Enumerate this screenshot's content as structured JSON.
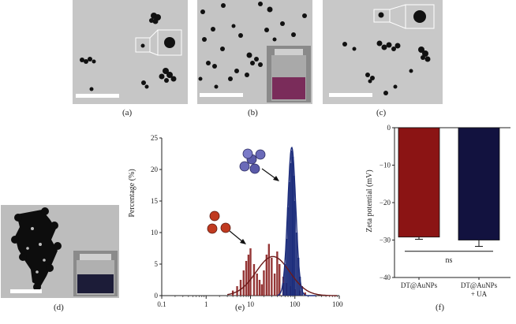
{
  "panels": {
    "a": {
      "label": "(a)"
    },
    "b": {
      "label": "(b)"
    },
    "c": {
      "label": "(c)"
    },
    "d": {
      "label": "(d)"
    },
    "e": {
      "label": "(e)"
    },
    "f": {
      "label": "(f)"
    }
  },
  "colors": {
    "tem_bg": "#c9c9c9",
    "particle": "#111111",
    "dls_line": "#6b1a1a",
    "dls_bar_red": "#8a2020",
    "blue_line": "#1a2a7a",
    "bar_red": "#8b1414",
    "bar_navy": "#12123f"
  },
  "chart_data": [
    {
      "panel": "e",
      "type": "bar",
      "xscale": "log",
      "xlim": [
        0.1,
        1000
      ],
      "xticks": [
        "0.1",
        "1",
        "10",
        "100",
        "1000"
      ],
      "ylim": [
        0,
        25
      ],
      "yticks": [
        "0",
        "5",
        "10",
        "15",
        "20",
        "25"
      ],
      "ylabel": "Percentage (%)",
      "xlabel": "",
      "series": [
        {
          "color": "#8a2020",
          "fit": "gaussian",
          "fit_peak_x": 32,
          "fit_peak_y": 6.2,
          "bars": [
            [
              4,
              0.8
            ],
            [
              5,
              1.5
            ],
            [
              6,
              2.5
            ],
            [
              7,
              4.0
            ],
            [
              8,
              5.5
            ],
            [
              9,
              6.5
            ],
            [
              10,
              7.5
            ],
            [
              12,
              5.0
            ],
            [
              14,
              3.5
            ],
            [
              16,
              2.5
            ],
            [
              18,
              1.8
            ],
            [
              20,
              4.0
            ],
            [
              23,
              6.5
            ],
            [
              26,
              8.2
            ],
            [
              30,
              6.0
            ],
            [
              35,
              3.5
            ],
            [
              40,
              7.0
            ],
            [
              45,
              5.0
            ],
            [
              55,
              3.0
            ],
            [
              65,
              2.0
            ],
            [
              80,
              1.5
            ],
            [
              100,
              1.0
            ],
            [
              130,
              0.8
            ],
            [
              170,
              0.5
            ]
          ]
        },
        {
          "color": "#1a2a7a",
          "fit": "gaussian",
          "fit_peak_x": 85,
          "fit_peak_y": 23.5,
          "bars": [
            [
              55,
              2
            ],
            [
              60,
              5
            ],
            [
              65,
              9
            ],
            [
              70,
              14
            ],
            [
              75,
              18
            ],
            [
              80,
              21
            ],
            [
              85,
              23
            ],
            [
              90,
              22
            ],
            [
              95,
              19
            ],
            [
              100,
              15
            ],
            [
              110,
              10
            ],
            [
              120,
              6
            ],
            [
              130,
              3
            ],
            [
              145,
              1.5
            ]
          ]
        }
      ]
    },
    {
      "panel": "f",
      "type": "bar",
      "categories": [
        "DT@AuNPs",
        "DT@AuNPs\n+ UA"
      ],
      "category_lines": [
        [
          "DT@AuNPs"
        ],
        [
          "DT@AuNPs",
          "+ UA"
        ]
      ],
      "values": [
        -29.2,
        -30.0
      ],
      "errors": [
        0.6,
        1.7
      ],
      "colors": [
        "#8b1414",
        "#12123f"
      ],
      "ylim": [
        -40,
        0
      ],
      "yticks": [
        "0",
        "−10",
        "−20",
        "−30",
        "−40"
      ],
      "ylabel": "Zeta potential (mV)",
      "annotation": "ns"
    }
  ]
}
